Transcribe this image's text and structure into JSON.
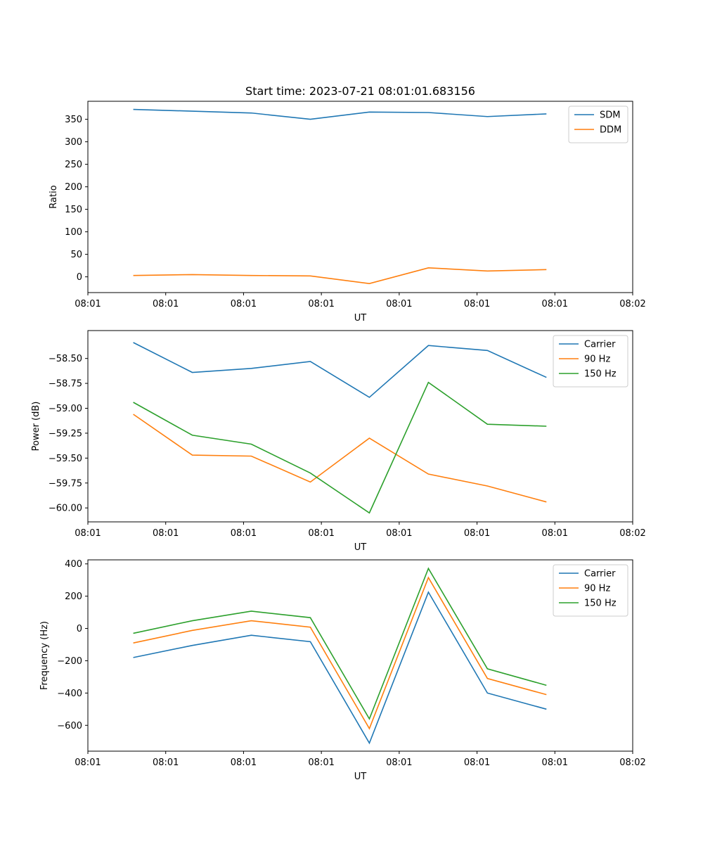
{
  "chart_data": [
    {
      "type": "line",
      "title": "Start time: 2023-07-21 08:01:01.683156",
      "xlabel": "UT",
      "ylabel": "Ratio",
      "x_tick_labels": [
        "08:01",
        "08:01",
        "08:01",
        "08:01",
        "08:01",
        "08:01",
        "08:01",
        "08:02"
      ],
      "xlim": [
        0,
        6
      ],
      "x": [
        0.5,
        1.15,
        1.8,
        2.45,
        3.1,
        3.75,
        4.4,
        5.05
      ],
      "ylim": [
        -35,
        390
      ],
      "yticks": [
        0,
        50,
        100,
        150,
        200,
        250,
        300,
        350
      ],
      "y_tick_labels": [
        "0",
        "50",
        "100",
        "150",
        "200",
        "250",
        "300",
        "350"
      ],
      "legend_position": "top-right",
      "series": [
        {
          "name": "SDM",
          "color": "#1f77b4",
          "values": [
            372,
            368,
            364,
            350,
            366,
            365,
            356,
            362
          ]
        },
        {
          "name": "DDM",
          "color": "#ff7f0e",
          "values": [
            3,
            5,
            3,
            2,
            -15,
            20,
            13,
            16
          ]
        }
      ]
    },
    {
      "type": "line",
      "title": "",
      "xlabel": "UT",
      "ylabel": "Power (dB)",
      "x_tick_labels": [
        "08:01",
        "08:01",
        "08:01",
        "08:01",
        "08:01",
        "08:01",
        "08:01",
        "08:02"
      ],
      "xlim": [
        0,
        6
      ],
      "x": [
        0.5,
        1.15,
        1.8,
        2.45,
        3.1,
        3.75,
        4.4,
        5.05
      ],
      "ylim": [
        -60.14,
        -58.22
      ],
      "yticks": [
        -60.0,
        -59.75,
        -59.5,
        -59.25,
        -59.0,
        -58.75,
        -58.5
      ],
      "y_tick_labels": [
        "−60.00",
        "−59.75",
        "−59.50",
        "−59.25",
        "−59.00",
        "−58.75",
        "−58.50"
      ],
      "legend_position": "top-right",
      "series": [
        {
          "name": "Carrier",
          "color": "#1f77b4",
          "values": [
            -58.34,
            -58.64,
            -58.6,
            -58.53,
            -58.89,
            -58.37,
            -58.42,
            -58.69
          ]
        },
        {
          "name": "90 Hz",
          "color": "#ff7f0e",
          "values": [
            -59.06,
            -59.47,
            -59.48,
            -59.74,
            -59.3,
            -59.66,
            -59.78,
            -59.94
          ]
        },
        {
          "name": "150 Hz",
          "color": "#2ca02c",
          "values": [
            -58.94,
            -59.27,
            -59.36,
            -59.65,
            -60.05,
            -58.74,
            -59.16,
            -59.18
          ]
        }
      ]
    },
    {
      "type": "line",
      "title": "",
      "xlabel": "UT",
      "ylabel": "Frequency (Hz)",
      "x_tick_labels": [
        "08:01",
        "08:01",
        "08:01",
        "08:01",
        "08:01",
        "08:01",
        "08:01",
        "08:02"
      ],
      "xlim": [
        0,
        6
      ],
      "x": [
        0.5,
        1.15,
        1.8,
        2.45,
        3.1,
        3.75,
        4.4,
        5.05
      ],
      "ylim": [
        -760,
        425
      ],
      "yticks": [
        -600,
        -400,
        -200,
        0,
        200,
        400
      ],
      "y_tick_labels": [
        "−600",
        "−400",
        "−200",
        "0",
        "200",
        "400"
      ],
      "legend_position": "top-right",
      "series": [
        {
          "name": "Carrier",
          "color": "#1f77b4",
          "values": [
            -180,
            -105,
            -42,
            -82,
            -710,
            225,
            -400,
            -500
          ]
        },
        {
          "name": "90 Hz",
          "color": "#ff7f0e",
          "values": [
            -90,
            -12,
            48,
            8,
            -620,
            315,
            -310,
            -410
          ]
        },
        {
          "name": "150 Hz",
          "color": "#2ca02c",
          "values": [
            -30,
            48,
            107,
            67,
            -560,
            372,
            -250,
            -352
          ]
        }
      ]
    }
  ]
}
